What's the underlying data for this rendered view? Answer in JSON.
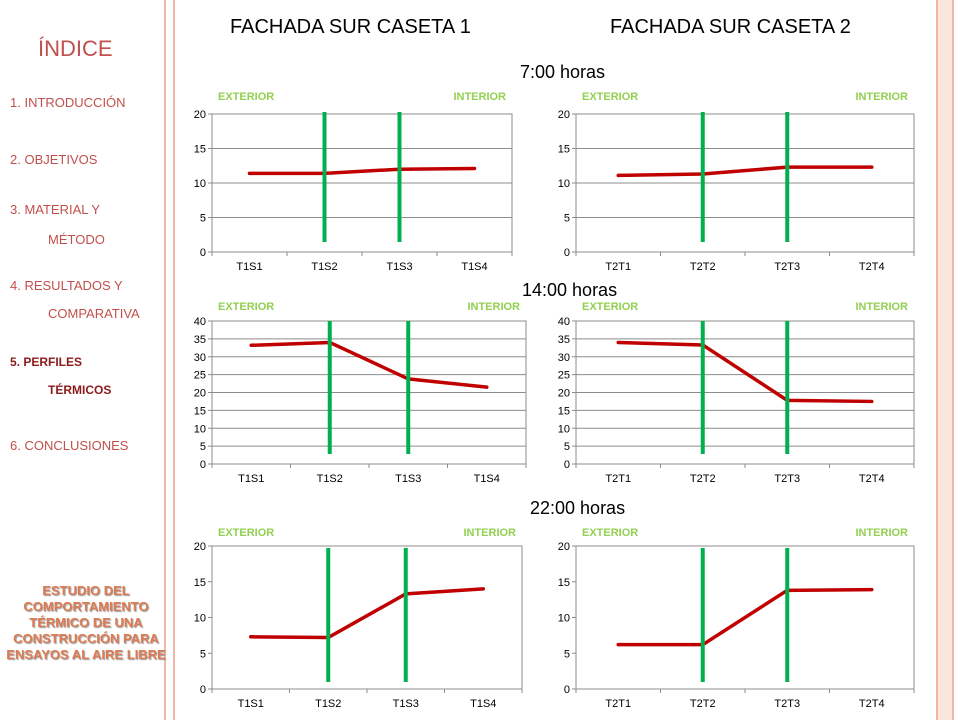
{
  "sidebar": {
    "title": "ÍNDICE",
    "items": [
      {
        "line1": "1. INTRODUCCIÓN",
        "line2": ""
      },
      {
        "line1": "2. OBJETIVOS",
        "line2": ""
      },
      {
        "line1": "3. MATERIAL Y",
        "line2": "MÉTODO"
      },
      {
        "line1": "4. RESULTADOS  Y",
        "line2": "COMPARATIVA"
      },
      {
        "line1": "5. PERFILES",
        "line2": "TÉRMICOS"
      },
      {
        "line1": "6. CONCLUSIONES",
        "line2": ""
      }
    ],
    "active_index": 4,
    "study_title": "ESTUDIO DEL COMPORTAMIENTO TÉRMICO DE UNA CONSTRUCCIÓN PARA ENSAYOS AL AIRE LIBRE"
  },
  "header": {
    "caseta1_title": "FACHADA SUR CASETA 1",
    "caseta2_title": "FACHADA SUR CASETA 2"
  },
  "times": [
    "7:00 horas",
    "14:00 horas",
    "22:00 horas"
  ],
  "colors": {
    "accent": "#c0504d",
    "series": "#c00000",
    "wall": "#00b050",
    "zone_label": "#92d050",
    "frame": "#f2b7a6"
  },
  "chart_data": [
    {
      "type": "line",
      "time": "7:00 horas",
      "zone_left": "EXTERIOR",
      "zone_right": "INTERIOR",
      "categories": [
        "T1S1",
        "T1S2",
        "T1S3",
        "T1S4"
      ],
      "values": [
        11.4,
        11.4,
        12.0,
        12.1
      ],
      "ylim": [
        0,
        20
      ],
      "yticks": [
        0,
        5,
        10,
        15,
        20
      ],
      "grid": true
    },
    {
      "type": "line",
      "time": "7:00 horas",
      "zone_left": "EXTERIOR",
      "zone_right": "INTERIOR",
      "categories": [
        "T2T1",
        "T2T2",
        "T2T3",
        "T2T4"
      ],
      "values": [
        11.1,
        11.3,
        12.3,
        12.3
      ],
      "ylim": [
        0,
        20
      ],
      "yticks": [
        0,
        5,
        10,
        15,
        20
      ],
      "grid": true
    },
    {
      "type": "line",
      "time": "14:00 horas",
      "zone_left": "EXTERIOR",
      "zone_right": "INTERIOR",
      "categories": [
        "T1S1",
        "T1S2",
        "T1S3",
        "T1S4"
      ],
      "values": [
        33.2,
        34.0,
        23.8,
        21.5
      ],
      "ylim": [
        0,
        40
      ],
      "yticks": [
        0,
        5,
        10,
        15,
        20,
        25,
        30,
        35,
        40
      ],
      "grid": true
    },
    {
      "type": "line",
      "time": "14:00 horas",
      "zone_left": "EXTERIOR",
      "zone_right": "INTERIOR",
      "categories": [
        "T2T1",
        "T2T2",
        "T2T3",
        "T2T4"
      ],
      "values": [
        34.0,
        33.3,
        17.8,
        17.5
      ],
      "ylim": [
        0,
        40
      ],
      "yticks": [
        0,
        5,
        10,
        15,
        20,
        25,
        30,
        35,
        40
      ],
      "grid": true
    },
    {
      "type": "line",
      "time": "22:00 horas",
      "zone_left": "EXTERIOR",
      "zone_right": "INTERIOR",
      "categories": [
        "T1S1",
        "T1S2",
        "T1S3",
        "T1S4"
      ],
      "values": [
        7.3,
        7.2,
        13.3,
        14.0
      ],
      "ylim": [
        0,
        20
      ],
      "yticks": [
        0,
        5,
        10,
        15,
        20
      ],
      "grid": false
    },
    {
      "type": "line",
      "time": "22:00 horas",
      "zone_left": "EXTERIOR",
      "zone_right": "INTERIOR",
      "categories": [
        "T2T1",
        "T2T2",
        "T2T3",
        "T2T4"
      ],
      "values": [
        6.2,
        6.2,
        13.8,
        13.9
      ],
      "ylim": [
        0,
        20
      ],
      "yticks": [
        0,
        5,
        10,
        15,
        20
      ],
      "grid": false
    }
  ]
}
